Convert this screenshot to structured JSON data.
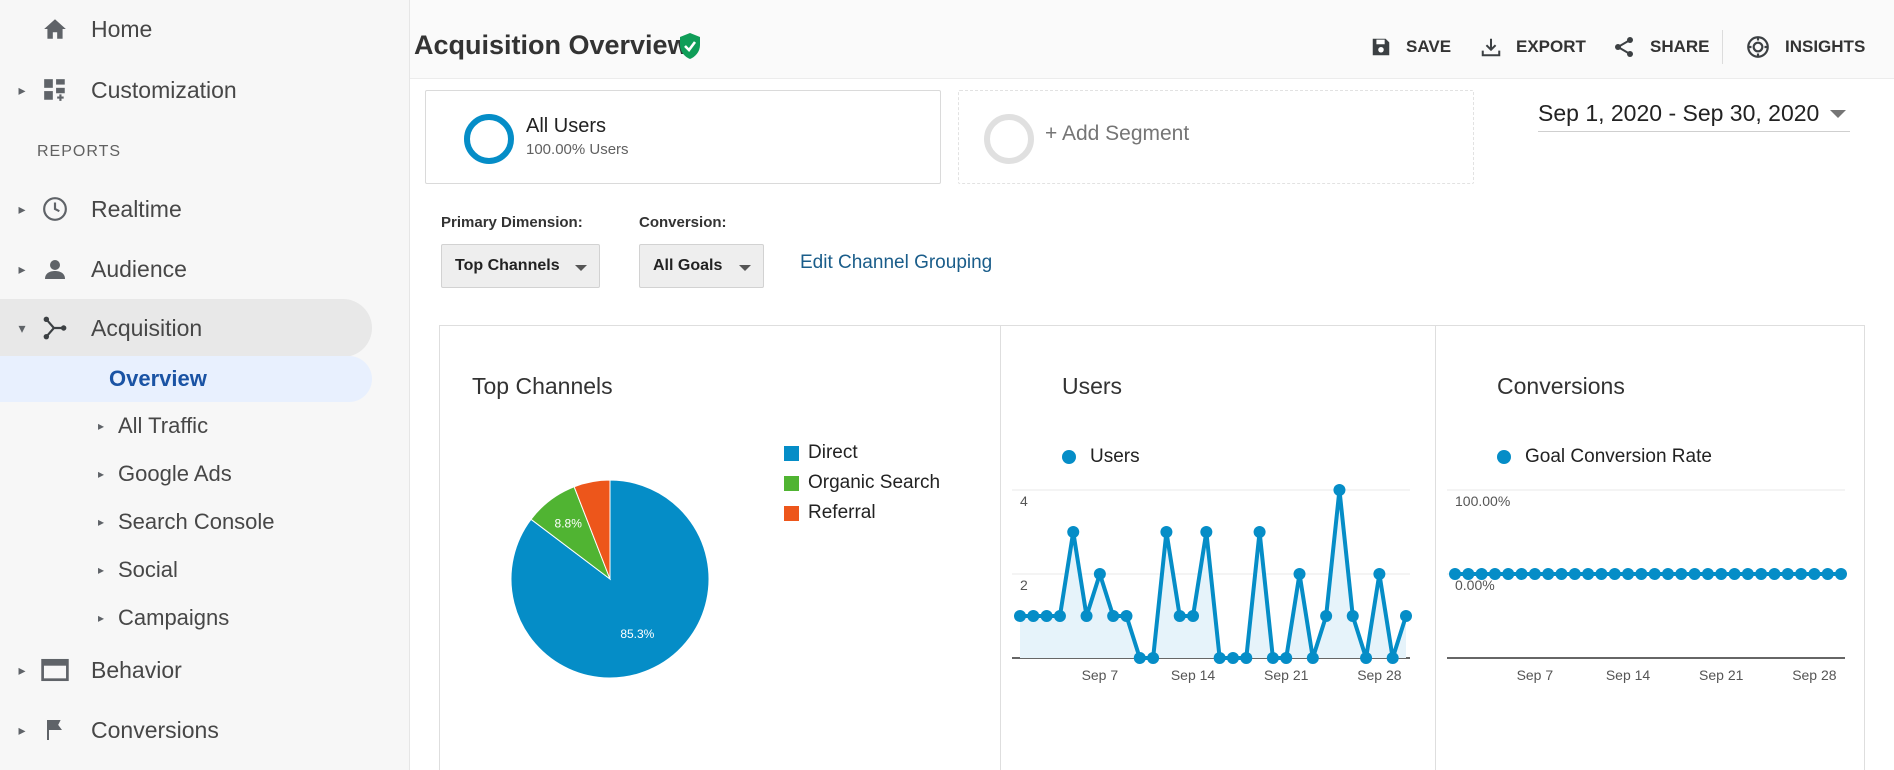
{
  "sidebar": {
    "home": "Home",
    "customization": "Customization",
    "reports_header": "REPORTS",
    "realtime": "Realtime",
    "audience": "Audience",
    "acquisition": "Acquisition",
    "sub": [
      "Overview",
      "All Traffic",
      "Google Ads",
      "Search Console",
      "Social",
      "Campaigns"
    ],
    "behavior": "Behavior",
    "conversions": "Conversions"
  },
  "header": {
    "title": "Acquisition Overview",
    "save": "SAVE",
    "export": "EXPORT",
    "share": "SHARE",
    "insights": "INSIGHTS"
  },
  "segments": {
    "all_users_title": "All Users",
    "all_users_sub": "100.00% Users",
    "add_segment": "+ Add Segment"
  },
  "date_range": "Sep 1, 2020 - Sep 30, 2020",
  "filters": {
    "primary_dimension_label": "Primary Dimension:",
    "primary_dimension_value": "Top Channels",
    "conversion_label": "Conversion:",
    "conversion_value": "All Goals",
    "edit_link": "Edit Channel Grouping"
  },
  "colors": {
    "blue": "#058dc7",
    "green": "#50b432",
    "orange": "#ed561b"
  },
  "chart_data": [
    {
      "type": "pie",
      "title": "Top Channels",
      "slices": [
        {
          "label": "Direct",
          "value": 85.3,
          "color": "#058dc7",
          "display": "85.3%"
        },
        {
          "label": "Organic Search",
          "value": 8.8,
          "color": "#50b432",
          "display": "8.8%"
        },
        {
          "label": "Referral",
          "value": 5.9,
          "color": "#ed561b",
          "display": ""
        }
      ]
    },
    {
      "type": "area",
      "title": "Users",
      "series": [
        {
          "name": "Users",
          "values": [
            1,
            1,
            1,
            1,
            3,
            1,
            2,
            1,
            1,
            0,
            0,
            3,
            1,
            1,
            3,
            0,
            0,
            0,
            3,
            0,
            0,
            2,
            0,
            1,
            4,
            1,
            0,
            2,
            0,
            1
          ]
        }
      ],
      "x": [
        1,
        2,
        3,
        4,
        5,
        6,
        7,
        8,
        9,
        10,
        11,
        12,
        13,
        14,
        15,
        16,
        17,
        18,
        19,
        20,
        21,
        22,
        23,
        24,
        25,
        26,
        27,
        28,
        29,
        30
      ],
      "y_ticks": [
        "4",
        "2"
      ],
      "x_ticks": [
        "Sep 7",
        "Sep 14",
        "Sep 21",
        "Sep 28"
      ],
      "ylim": [
        0,
        4
      ],
      "color": "#058dc7"
    },
    {
      "type": "line",
      "title": "Conversions",
      "series": [
        {
          "name": "Goal Conversion Rate",
          "values": [
            0,
            0,
            0,
            0,
            0,
            0,
            0,
            0,
            0,
            0,
            0,
            0,
            0,
            0,
            0,
            0,
            0,
            0,
            0,
            0,
            0,
            0,
            0,
            0,
            0,
            0,
            0,
            0,
            0,
            0
          ]
        }
      ],
      "x": [
        1,
        2,
        3,
        4,
        5,
        6,
        7,
        8,
        9,
        10,
        11,
        12,
        13,
        14,
        15,
        16,
        17,
        18,
        19,
        20,
        21,
        22,
        23,
        24,
        25,
        26,
        27,
        28,
        29,
        30
      ],
      "y_ticks": [
        "100.00%",
        "0.00%"
      ],
      "x_ticks": [
        "Sep 7",
        "Sep 14",
        "Sep 21",
        "Sep 28"
      ],
      "color": "#058dc7"
    }
  ]
}
